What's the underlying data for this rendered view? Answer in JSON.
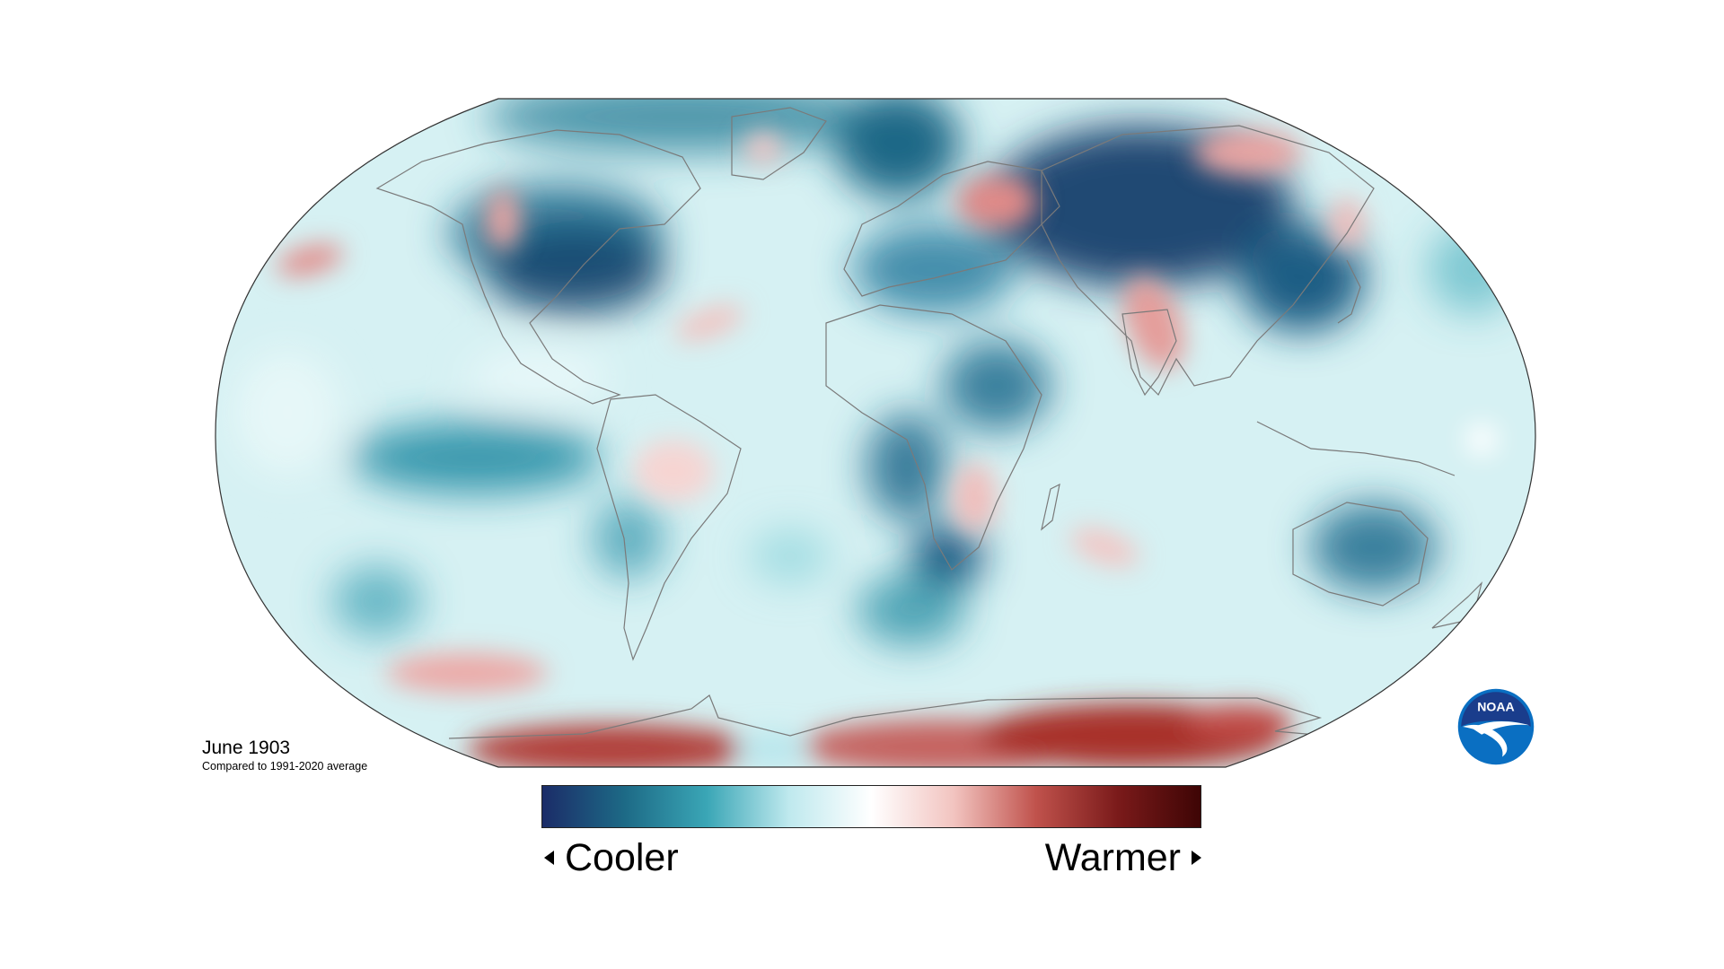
{
  "caption": {
    "title": "June 1903",
    "subtitle": "Compared to 1991-2020 average"
  },
  "legend": {
    "low_label": "Cooler",
    "high_label": "Warmer",
    "gradient_stops": [
      "#1b2c68",
      "#1d6a86",
      "#3aa6b6",
      "#bfe9ee",
      "#ffffff",
      "#f2c4c0",
      "#c0524c",
      "#7a1a1a",
      "#3e0505"
    ]
  },
  "logo": {
    "text": "NOAA",
    "icon": "noaa-logo",
    "colors": {
      "outer": "#0a6fc2",
      "inner": "#1a3d8c",
      "bird": "#ffffff"
    }
  },
  "map": {
    "projection": "robinson",
    "map_background": "#d6f1f3",
    "outline_color": "#333333",
    "coast_color": "#7a7a7a"
  }
}
